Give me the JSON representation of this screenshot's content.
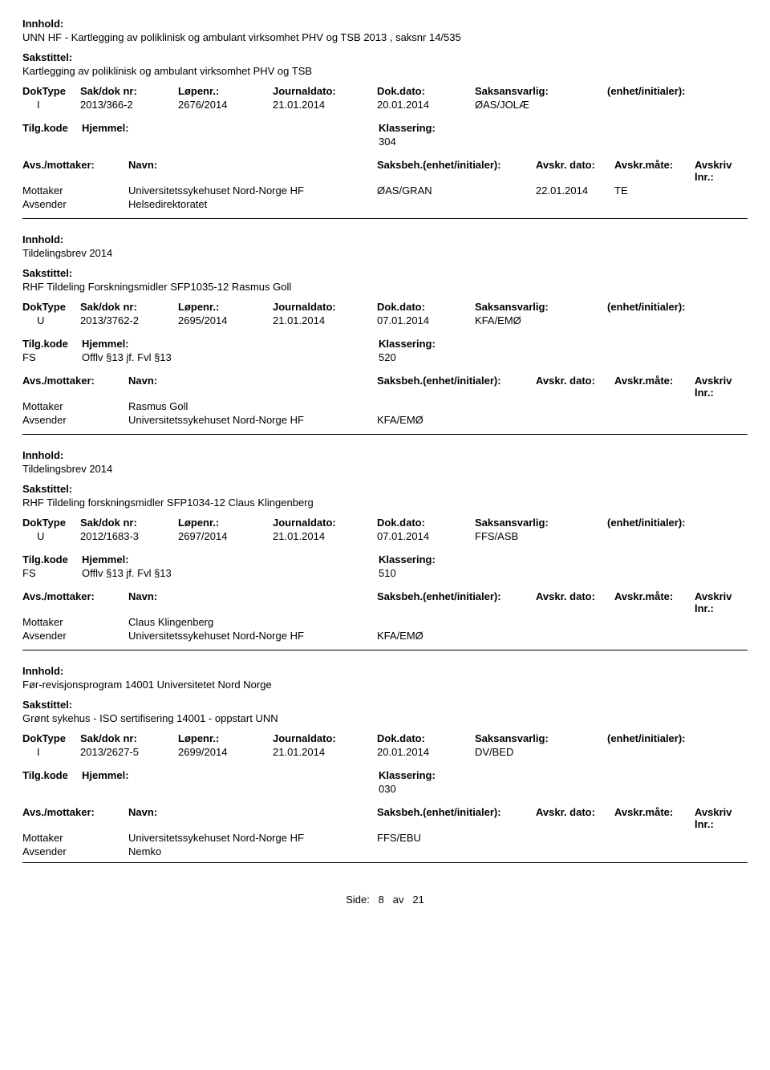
{
  "labels": {
    "innhold": "Innhold:",
    "sakstittel": "Sakstittel:",
    "doktype": "DokType",
    "saknr": "Sak/dok nr:",
    "lopenr": "Løpenr.:",
    "journaldato": "Journaldato:",
    "dokdato": "Dok.dato:",
    "saksansvarlig": "Saksansvarlig:",
    "enhet": "(enhet/initialer):",
    "tilgkode": "Tilg.kode",
    "hjemmel": "Hjemmel:",
    "klassering": "Klassering:",
    "avsmottaker": "Avs./mottaker:",
    "navn": "Navn:",
    "saksbeh": "Saksbeh.(enhet/initialer):",
    "avskrdato": "Avskr. dato:",
    "avskrmate": "Avskr.måte:",
    "avskrlnr": "Avskriv lnr.:",
    "mottaker": "Mottaker",
    "avsender": "Avsender"
  },
  "records": [
    {
      "innhold": "UNN HF - Kartlegging av poliklinisk og ambulant virksomhet PHV og TSB 2013 , saksnr 14/535",
      "sakstittel": "Kartlegging av poliklinisk og ambulant virksomhet PHV og TSB",
      "doktype": "I",
      "saknr": "2013/366-2",
      "lopenr": "2676/2014",
      "journaldato": "21.01.2014",
      "dokdato": "20.01.2014",
      "saksansvarlig": "ØAS/JOLÆ",
      "enhet": "",
      "tilgkode": "",
      "hjemmel": "",
      "klassering": "304",
      "parties": [
        {
          "role": "Mottaker",
          "navn": "Universitetssykehuset Nord-Norge HF",
          "saksbeh": "ØAS/GRAN",
          "avskrdato": "22.01.2014",
          "avskrmate": "TE",
          "avskrlnr": ""
        },
        {
          "role": "Avsender",
          "navn": "Helsedirektoratet",
          "saksbeh": "",
          "avskrdato": "",
          "avskrmate": "",
          "avskrlnr": ""
        }
      ]
    },
    {
      "innhold": "Tildelingsbrev 2014",
      "sakstittel": "RHF Tildeling Forskningsmidler SFP1035-12 Rasmus Goll",
      "doktype": "U",
      "saknr": "2013/3762-2",
      "lopenr": "2695/2014",
      "journaldato": "21.01.2014",
      "dokdato": "07.01.2014",
      "saksansvarlig": "KFA/EMØ",
      "enhet": "",
      "tilgkode": "FS",
      "hjemmel": "Offlv §13 jf. Fvl §13",
      "klassering": "520",
      "parties": [
        {
          "role": "Mottaker",
          "navn": "Rasmus Goll",
          "saksbeh": "",
          "avskrdato": "",
          "avskrmate": "",
          "avskrlnr": ""
        },
        {
          "role": "Avsender",
          "navn": "Universitetssykehuset Nord-Norge HF",
          "saksbeh": "KFA/EMØ",
          "avskrdato": "",
          "avskrmate": "",
          "avskrlnr": ""
        }
      ]
    },
    {
      "innhold": "Tildelingsbrev 2014",
      "sakstittel": "RHF Tildeling forskningsmidler SFP1034-12 Claus Klingenberg",
      "doktype": "U",
      "saknr": "2012/1683-3",
      "lopenr": "2697/2014",
      "journaldato": "21.01.2014",
      "dokdato": "07.01.2014",
      "saksansvarlig": "FFS/ASB",
      "enhet": "",
      "tilgkode": "FS",
      "hjemmel": "Offlv §13 jf. Fvl §13",
      "klassering": "510",
      "parties": [
        {
          "role": "Mottaker",
          "navn": "Claus Klingenberg",
          "saksbeh": "",
          "avskrdato": "",
          "avskrmate": "",
          "avskrlnr": ""
        },
        {
          "role": "Avsender",
          "navn": "Universitetssykehuset Nord-Norge HF",
          "saksbeh": "KFA/EMØ",
          "avskrdato": "",
          "avskrmate": "",
          "avskrlnr": ""
        }
      ]
    },
    {
      "innhold": "Før-revisjonsprogram 14001 Universitetet Nord Norge",
      "sakstittel": "Grønt sykehus - ISO sertifisering 14001 - oppstart UNN",
      "doktype": "I",
      "saknr": "2013/2627-5",
      "lopenr": "2699/2014",
      "journaldato": "21.01.2014",
      "dokdato": "20.01.2014",
      "saksansvarlig": "DV/BED",
      "enhet": "",
      "tilgkode": "",
      "hjemmel": "",
      "klassering": "030",
      "parties": [
        {
          "role": "Mottaker",
          "navn": "Universitetssykehuset Nord-Norge HF",
          "saksbeh": "FFS/EBU",
          "avskrdato": "",
          "avskrmate": "",
          "avskrlnr": ""
        },
        {
          "role": "Avsender",
          "navn": "Nemko",
          "saksbeh": "",
          "avskrdato": "",
          "avskrmate": "",
          "avskrlnr": ""
        }
      ]
    }
  ],
  "footer": {
    "side": "Side:",
    "page": "8",
    "av": "av",
    "total": "21"
  }
}
